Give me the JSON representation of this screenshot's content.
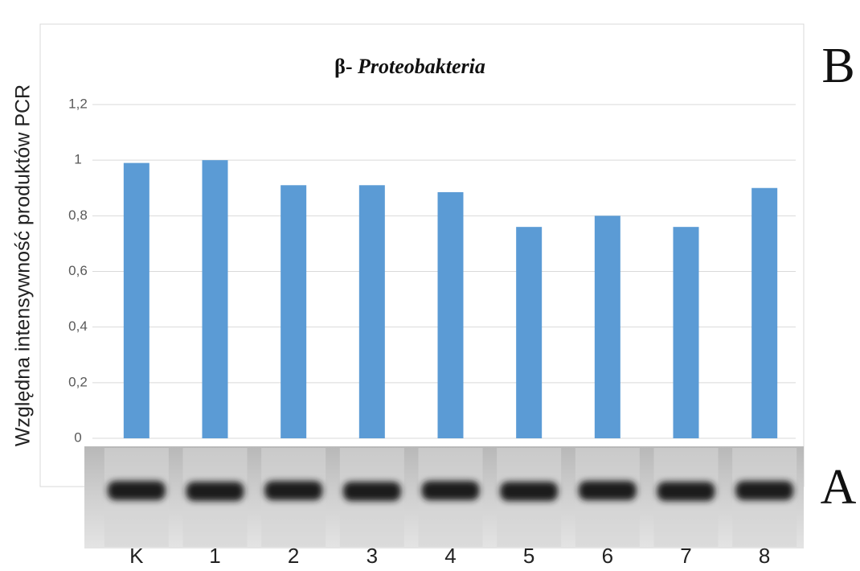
{
  "chart_data": {
    "type": "bar",
    "title": "β-",
    "title_italic": "Proteobakteria",
    "ylabel": "Względna intensywność produktów PCR",
    "categories": [
      "K",
      "1",
      "2",
      "3",
      "4",
      "5",
      "6",
      "7",
      "8"
    ],
    "values": [
      0.99,
      1.0,
      0.91,
      0.91,
      0.885,
      0.76,
      0.8,
      0.76,
      0.9
    ],
    "color": "#5b9bd5",
    "ylim": [
      0,
      1.2
    ],
    "yticks": [
      0,
      {
        "value": 0.2,
        "label": "0,2"
      },
      {
        "value": 0.4,
        "label": "0,4"
      },
      {
        "value": 0.6,
        "label": "0,6"
      },
      {
        "value": 0.8,
        "label": "0,8"
      },
      1,
      {
        "value": 1.2,
        "label": "1,2"
      }
    ],
    "grid": true,
    "panel_labels": [
      "B",
      "A"
    ]
  }
}
